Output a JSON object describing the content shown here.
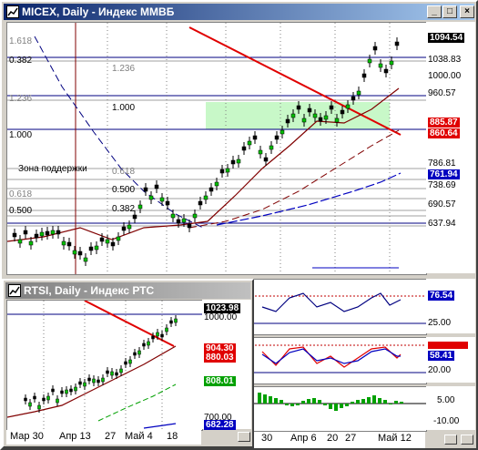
{
  "micex": {
    "title": "MICEX, Daily - Индекс ММВБ",
    "fib_labels": {
      "f1618": "1.618",
      "f0382": "0.382",
      "f1236": "1.236",
      "f1000a": "1.000",
      "f1236b": "1.236",
      "f1000b": "1.000",
      "f0618a": "0.618",
      "f0500a": "0.500",
      "f0382a": "0.382",
      "f0618b": "0.618",
      "f0500b": "0.500"
    },
    "support_zone_label": "Зона поддержки",
    "prices": [
      {
        "v": "1094.54",
        "style": "black"
      },
      {
        "v": "1038.83",
        "style": "plain"
      },
      {
        "v": "1000.00",
        "style": "plain"
      },
      {
        "v": "960.57",
        "style": "plain"
      },
      {
        "v": "885.87",
        "style": "red"
      },
      {
        "v": "860.64",
        "style": "red"
      },
      {
        "v": "786.81",
        "style": "plain"
      },
      {
        "v": "761.94",
        "style": "blue"
      },
      {
        "v": "738.69",
        "style": "plain"
      },
      {
        "v": "690.57",
        "style": "plain"
      },
      {
        "v": "637.94",
        "style": "plain"
      }
    ],
    "x_labels": {
      "d30": "30",
      "apr6": "Апр 6",
      "d20": "20",
      "d27": "27",
      "may12": "Май 12"
    },
    "osc1": {
      "v1": "76.54",
      "v2": "25.00"
    },
    "osc2": {
      "v1": "58.41",
      "v2": "20.00"
    },
    "osc3": {
      "v1": "5.00",
      "v2": "-10.00"
    }
  },
  "rtsi": {
    "title": "RTSI, Daily - Индекс РТС",
    "prices": [
      {
        "v": "1023.98",
        "style": "black"
      },
      {
        "v": "1000.00",
        "style": "plain"
      },
      {
        "v": "904.30",
        "style": "red"
      },
      {
        "v": "880.03",
        "style": "red"
      },
      {
        "v": "808.01",
        "style": "green"
      },
      {
        "v": "700.00",
        "style": "plain"
      },
      {
        "v": "682.28",
        "style": "blue"
      }
    ],
    "x_labels": {
      "mar30": "Мар 30",
      "apr13": "Апр 13",
      "d27": "27",
      "may4": "Май 4",
      "d18": "18"
    }
  },
  "colors": {
    "red": "#e00000",
    "blue": "#0000c0",
    "green": "#00a000",
    "darkred": "#800000",
    "zone": "#c8f8c8",
    "title_active": "#0a246a"
  }
}
